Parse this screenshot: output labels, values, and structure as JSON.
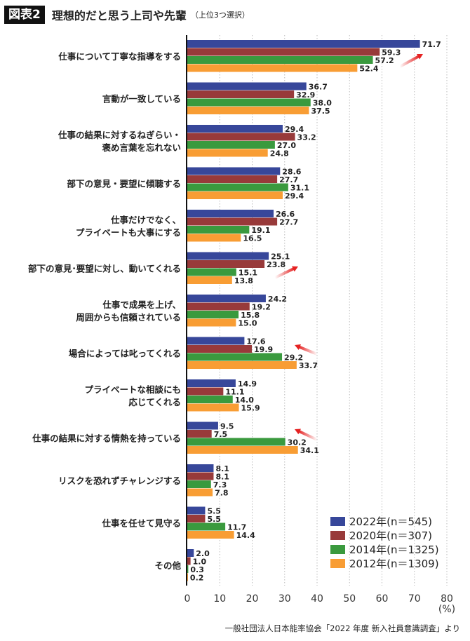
{
  "header": {
    "figure_label": "図表2",
    "title": "理想的だと思う上司や先輩",
    "subtitle": "（上位3つ選択）"
  },
  "source": "一般社団法人日本能率協会「2022 年度 新入社員意識調査」より",
  "chart_data": {
    "type": "bar",
    "orientation": "horizontal",
    "title": "理想的だと思う上司や先輩",
    "categories": [
      [
        "仕事について丁寧な指導をする"
      ],
      [
        "言動が一致している"
      ],
      [
        "仕事の結果に対するねぎらい・",
        "褒め言葉を忘れない"
      ],
      [
        "部下の意見・要望に傾聴する"
      ],
      [
        "仕事だけでなく、",
        "プライベートも大事にする"
      ],
      [
        "部下の意見･要望に対し、動いてくれる"
      ],
      [
        "仕事で成果を上げ、",
        "周囲からも信頼されている"
      ],
      [
        "場合によっては叱ってくれる"
      ],
      [
        "プライベートな相談にも",
        "応じてくれる"
      ],
      [
        "仕事の結果に対する情熱を持っている"
      ],
      [
        "リスクを恐れずチャレンジする"
      ],
      [
        "仕事を任せて見守る"
      ],
      [
        "その他"
      ]
    ],
    "series": [
      {
        "name": "2022年(n＝545)",
        "color": "#37479a",
        "values": [
          71.7,
          36.7,
          29.4,
          28.6,
          26.6,
          25.1,
          24.2,
          17.6,
          14.9,
          9.5,
          8.1,
          5.5,
          2.0
        ],
        "labels": [
          "71.7",
          "36.7",
          "29.4",
          "28.6",
          "26.6",
          "25.1",
          "24.2",
          "17.6",
          "14.9",
          "9.5",
          "8.1",
          "5.5",
          "2.0"
        ]
      },
      {
        "name": "2020年(n＝307)",
        "color": "#983a3a",
        "values": [
          59.3,
          32.9,
          33.2,
          27.7,
          27.7,
          23.8,
          19.2,
          19.9,
          11.1,
          7.5,
          8.1,
          5.5,
          1.0
        ],
        "labels": [
          "59.3",
          "32.9",
          "33.2",
          "27.7",
          "27.7",
          "23.8",
          "19.2",
          "19.9",
          "11.1",
          "7.5",
          "8.1",
          "5.5",
          "1.0"
        ]
      },
      {
        "name": "2014年(n＝1325)",
        "color": "#3a9a3e",
        "values": [
          57.2,
          38.0,
          27.0,
          31.1,
          19.1,
          15.1,
          15.8,
          29.2,
          14.0,
          30.2,
          7.3,
          11.7,
          0.3
        ],
        "labels": [
          "57.2",
          "38.0",
          "27.0",
          "31.1",
          "19.1",
          "15.1",
          "15.8",
          "29.2",
          "14.0",
          "30.2",
          "7.3",
          "11.7",
          "0.3"
        ]
      },
      {
        "name": "2012年(n＝1309)",
        "color": "#f89d34",
        "values": [
          52.4,
          37.5,
          24.8,
          29.4,
          16.5,
          13.8,
          15.0,
          33.7,
          15.9,
          34.1,
          7.8,
          14.4,
          0.2
        ],
        "labels": [
          "52.4",
          "37.5",
          "24.8",
          "29.4",
          "16.5",
          "13.8",
          "15.0",
          "33.7",
          "15.9",
          "34.1",
          "7.8",
          "14.4",
          "0.2"
        ]
      }
    ],
    "xlim": [
      0,
      80
    ],
    "xticks": [
      "0",
      "10",
      "20",
      "30",
      "40",
      "50",
      "60",
      "70",
      "80"
    ],
    "xunit": "(%)",
    "grid": "vertical dotted",
    "legend": "bottom-right",
    "annotations": [
      {
        "type": "arrow",
        "direction": "up-right",
        "category_index": 0,
        "color": "#e52222"
      },
      {
        "type": "arrow",
        "direction": "up-right",
        "category_index": 5,
        "color": "#e52222"
      },
      {
        "type": "arrow",
        "direction": "up-left",
        "category_index": 7,
        "color": "#e52222"
      },
      {
        "type": "arrow",
        "direction": "up-left",
        "category_index": 9,
        "color": "#e52222"
      }
    ]
  }
}
